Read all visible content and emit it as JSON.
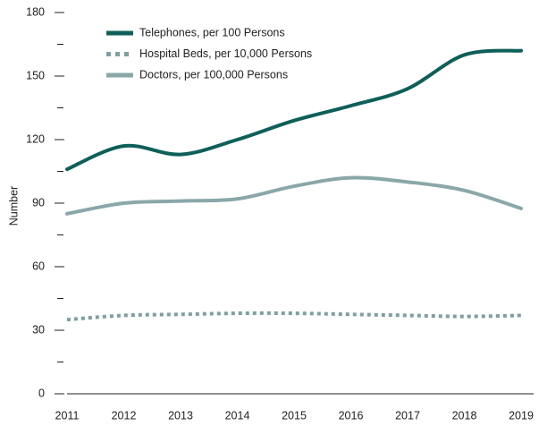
{
  "chart_data": {
    "type": "line",
    "y_label": "Number",
    "x": [
      2011,
      2012,
      2013,
      2014,
      2015,
      2016,
      2017,
      2018,
      2019
    ],
    "xlim": [
      2011,
      2019
    ],
    "xticks": [
      2011,
      2012,
      2013,
      2014,
      2015,
      2016,
      2017,
      2018,
      2019
    ],
    "ylim": [
      0,
      180
    ],
    "yticks": [
      0,
      30,
      60,
      90,
      120,
      150,
      180
    ],
    "yminorticks": [
      15,
      45,
      75,
      105,
      135,
      165
    ],
    "series": [
      {
        "name": "Telephones, per 100 Persons",
        "color": "#0f5f59",
        "style": "solid",
        "values": [
          106,
          117,
          113,
          120,
          129,
          136,
          144,
          160,
          162
        ]
      },
      {
        "name": "Hospital Beds, per 10,000 Persons",
        "color": "#7f9fa1",
        "style": "dotted",
        "values": [
          35,
          37,
          37.5,
          38,
          38,
          37.5,
          37,
          36.5,
          37
        ]
      },
      {
        "name": "Doctors, per 100,000 Persons",
        "color": "#8aa7a9",
        "style": "solid",
        "values": [
          85,
          90,
          91,
          92,
          98,
          102,
          100,
          96,
          87.5
        ]
      }
    ]
  }
}
